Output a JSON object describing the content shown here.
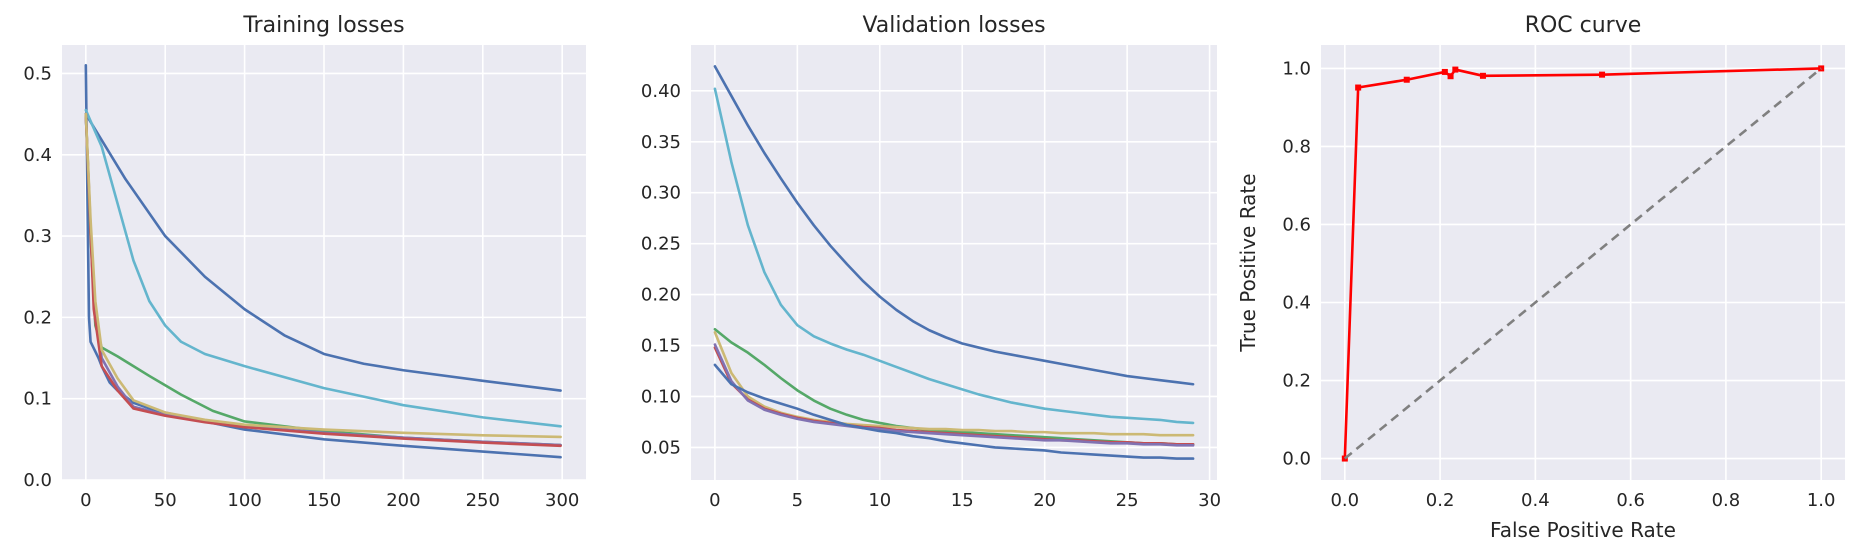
{
  "chart_data": [
    {
      "type": "line",
      "title": "Training losses",
      "xlabel": "",
      "ylabel": "",
      "xlim": [
        -15,
        315
      ],
      "ylim": [
        0,
        0.535
      ],
      "xticks": [
        0,
        50,
        100,
        150,
        200,
        250,
        300
      ],
      "yticks": [
        0.0,
        0.1,
        0.2,
        0.3,
        0.4,
        0.5
      ],
      "ytick_labels": [
        "0.0",
        "0.1",
        "0.2",
        "0.3",
        "0.4",
        "0.5"
      ],
      "grid": true,
      "series": [
        {
          "color": "#4c72b0",
          "points": [
            [
              0,
              0.51
            ],
            [
              1,
              0.35
            ],
            [
              2,
              0.2
            ],
            [
              3,
              0.17
            ],
            [
              5,
              0.162
            ],
            [
              8,
              0.15
            ],
            [
              10,
              0.14
            ],
            [
              15,
              0.12
            ],
            [
              20,
              0.11
            ],
            [
              30,
              0.095
            ],
            [
              40,
              0.088
            ],
            [
              50,
              0.083
            ],
            [
              75,
              0.072
            ],
            [
              100,
              0.062
            ],
            [
              150,
              0.05
            ],
            [
              200,
              0.042
            ],
            [
              250,
              0.035
            ],
            [
              299,
              0.028
            ]
          ]
        },
        {
          "color": "#4c72b0",
          "points": [
            [
              0,
              0.45
            ],
            [
              25,
              0.37
            ],
            [
              50,
              0.3
            ],
            [
              75,
              0.25
            ],
            [
              100,
              0.21
            ],
            [
              125,
              0.178
            ],
            [
              150,
              0.155
            ],
            [
              175,
              0.143
            ],
            [
              200,
              0.135
            ],
            [
              250,
              0.122
            ],
            [
              299,
              0.11
            ]
          ]
        },
        {
          "color": "#64b5cd",
          "points": [
            [
              0,
              0.455
            ],
            [
              10,
              0.41
            ],
            [
              20,
              0.34
            ],
            [
              30,
              0.27
            ],
            [
              40,
              0.22
            ],
            [
              50,
              0.19
            ],
            [
              60,
              0.17
            ],
            [
              75,
              0.155
            ],
            [
              100,
              0.14
            ],
            [
              150,
              0.113
            ],
            [
              200,
              0.092
            ],
            [
              250,
              0.077
            ],
            [
              299,
              0.066
            ]
          ]
        },
        {
          "color": "#55a868",
          "points": [
            [
              0,
              0.45
            ],
            [
              3,
              0.3
            ],
            [
              6,
              0.19
            ],
            [
              10,
              0.163
            ],
            [
              20,
              0.152
            ],
            [
              40,
              0.128
            ],
            [
              60,
              0.105
            ],
            [
              80,
              0.085
            ],
            [
              100,
              0.072
            ],
            [
              150,
              0.06
            ],
            [
              200,
              0.052
            ],
            [
              250,
              0.047
            ],
            [
              299,
              0.043
            ]
          ]
        },
        {
          "color": "#8172b2",
          "points": [
            [
              0,
              0.45
            ],
            [
              5,
              0.22
            ],
            [
              10,
              0.15
            ],
            [
              20,
              0.115
            ],
            [
              30,
              0.09
            ],
            [
              50,
              0.08
            ],
            [
              75,
              0.072
            ],
            [
              100,
              0.066
            ],
            [
              150,
              0.058
            ],
            [
              200,
              0.052
            ],
            [
              250,
              0.047
            ],
            [
              299,
              0.043
            ]
          ]
        },
        {
          "color": "#c44e52",
          "points": [
            [
              0,
              0.45
            ],
            [
              5,
              0.21
            ],
            [
              10,
              0.14
            ],
            [
              20,
              0.11
            ],
            [
              30,
              0.088
            ],
            [
              50,
              0.079
            ],
            [
              75,
              0.071
            ],
            [
              100,
              0.065
            ],
            [
              150,
              0.057
            ],
            [
              200,
              0.051
            ],
            [
              250,
              0.046
            ],
            [
              299,
              0.042
            ]
          ]
        },
        {
          "color": "#ccb974",
          "points": [
            [
              0,
              0.45
            ],
            [
              3,
              0.32
            ],
            [
              6,
              0.22
            ],
            [
              10,
              0.16
            ],
            [
              20,
              0.125
            ],
            [
              30,
              0.098
            ],
            [
              50,
              0.083
            ],
            [
              75,
              0.074
            ],
            [
              100,
              0.068
            ],
            [
              150,
              0.062
            ],
            [
              200,
              0.058
            ],
            [
              250,
              0.055
            ],
            [
              299,
              0.053
            ]
          ]
        }
      ]
    },
    {
      "type": "line",
      "title": "Validation losses",
      "xlabel": "",
      "ylabel": "",
      "xlim": [
        -1.45,
        30.45
      ],
      "ylim": [
        0.018,
        0.445
      ],
      "xticks": [
        0,
        5,
        10,
        15,
        20,
        25,
        30
      ],
      "yticks": [
        0.05,
        0.1,
        0.15,
        0.2,
        0.25,
        0.3,
        0.35,
        0.4
      ],
      "ytick_labels": [
        "0.05",
        "0.10",
        "0.15",
        "0.20",
        "0.25",
        "0.30",
        "0.35",
        "0.40"
      ],
      "grid": true,
      "series": [
        {
          "color": "#4c72b0",
          "x": [
            0,
            1,
            2,
            3,
            4,
            5,
            6,
            7,
            8,
            9,
            10,
            11,
            12,
            13,
            14,
            15,
            16,
            17,
            18,
            19,
            20,
            21,
            22,
            23,
            24,
            25,
            26,
            27,
            28,
            29
          ],
          "values": [
            0.424,
            0.395,
            0.366,
            0.339,
            0.314,
            0.29,
            0.268,
            0.248,
            0.23,
            0.213,
            0.198,
            0.185,
            0.174,
            0.165,
            0.158,
            0.152,
            0.148,
            0.144,
            0.141,
            0.138,
            0.135,
            0.132,
            0.129,
            0.126,
            0.123,
            0.12,
            0.118,
            0.116,
            0.114,
            0.112
          ]
        },
        {
          "color": "#64b5cd",
          "x": [
            0,
            1,
            2,
            3,
            4,
            5,
            6,
            7,
            8,
            9,
            10,
            11,
            12,
            13,
            14,
            15,
            16,
            17,
            18,
            19,
            20,
            21,
            22,
            23,
            24,
            25,
            26,
            27,
            28,
            29
          ],
          "values": [
            0.402,
            0.33,
            0.268,
            0.222,
            0.19,
            0.17,
            0.159,
            0.152,
            0.146,
            0.141,
            0.135,
            0.129,
            0.123,
            0.117,
            0.112,
            0.107,
            0.102,
            0.098,
            0.094,
            0.091,
            0.088,
            0.086,
            0.084,
            0.082,
            0.08,
            0.079,
            0.078,
            0.077,
            0.075,
            0.074
          ]
        },
        {
          "color": "#55a868",
          "x": [
            0,
            1,
            2,
            3,
            4,
            5,
            6,
            7,
            8,
            9,
            10,
            11,
            12,
            13,
            14,
            15,
            16,
            17,
            18,
            19,
            20,
            21,
            22,
            23,
            24,
            25,
            26,
            27,
            28,
            29
          ],
          "values": [
            0.166,
            0.153,
            0.143,
            0.131,
            0.118,
            0.106,
            0.096,
            0.088,
            0.082,
            0.077,
            0.074,
            0.071,
            0.069,
            0.067,
            0.066,
            0.065,
            0.064,
            0.063,
            0.062,
            0.061,
            0.06,
            0.059,
            0.058,
            0.057,
            0.056,
            0.055,
            0.054,
            0.054,
            0.053,
            0.053
          ]
        },
        {
          "color": "#ccb974",
          "x": [
            0,
            1,
            2,
            3,
            4,
            5,
            6,
            7,
            8,
            9,
            10,
            11,
            12,
            13,
            14,
            15,
            16,
            17,
            18,
            19,
            20,
            21,
            22,
            23,
            24,
            25,
            26,
            27,
            28,
            29
          ],
          "values": [
            0.163,
            0.123,
            0.1,
            0.09,
            0.084,
            0.08,
            0.077,
            0.075,
            0.073,
            0.072,
            0.071,
            0.07,
            0.069,
            0.068,
            0.068,
            0.067,
            0.067,
            0.066,
            0.066,
            0.065,
            0.065,
            0.064,
            0.064,
            0.064,
            0.063,
            0.063,
            0.063,
            0.062,
            0.062,
            0.062
          ]
        },
        {
          "color": "#c44e52",
          "x": [
            0,
            1,
            2,
            3,
            4,
            5,
            6,
            7,
            8,
            9,
            10,
            11,
            12,
            13,
            14,
            15,
            16,
            17,
            18,
            19,
            20,
            21,
            22,
            23,
            24,
            25,
            26,
            27,
            28,
            29
          ],
          "values": [
            0.148,
            0.113,
            0.097,
            0.088,
            0.083,
            0.079,
            0.076,
            0.074,
            0.072,
            0.07,
            0.069,
            0.067,
            0.066,
            0.065,
            0.064,
            0.063,
            0.062,
            0.061,
            0.06,
            0.059,
            0.058,
            0.057,
            0.057,
            0.056,
            0.055,
            0.055,
            0.054,
            0.054,
            0.053,
            0.053
          ]
        },
        {
          "color": "#8172b2",
          "x": [
            0,
            1,
            2,
            3,
            4,
            5,
            6,
            7,
            8,
            9,
            10,
            11,
            12,
            13,
            14,
            15,
            16,
            17,
            18,
            19,
            20,
            21,
            22,
            23,
            24,
            25,
            26,
            27,
            28,
            29
          ],
          "values": [
            0.151,
            0.115,
            0.096,
            0.087,
            0.082,
            0.078,
            0.075,
            0.073,
            0.071,
            0.069,
            0.068,
            0.066,
            0.065,
            0.064,
            0.063,
            0.062,
            0.061,
            0.06,
            0.059,
            0.058,
            0.057,
            0.057,
            0.056,
            0.055,
            0.054,
            0.054,
            0.053,
            0.053,
            0.052,
            0.052
          ]
        },
        {
          "color": "#4c72b0",
          "x": [
            0,
            1,
            2,
            3,
            4,
            5,
            6,
            7,
            8,
            9,
            10,
            11,
            12,
            13,
            14,
            15,
            16,
            17,
            18,
            19,
            20,
            21,
            22,
            23,
            24,
            25,
            26,
            27,
            28,
            29
          ],
          "values": [
            0.131,
            0.112,
            0.104,
            0.098,
            0.093,
            0.088,
            0.082,
            0.077,
            0.072,
            0.069,
            0.066,
            0.064,
            0.061,
            0.059,
            0.056,
            0.054,
            0.052,
            0.05,
            0.049,
            0.048,
            0.047,
            0.045,
            0.044,
            0.043,
            0.042,
            0.041,
            0.04,
            0.04,
            0.039,
            0.039
          ]
        }
      ]
    },
    {
      "type": "line",
      "title": "ROC curve",
      "xlabel": "False Positive Rate",
      "ylabel": "True Positive Rate",
      "xlim": [
        -0.05,
        1.05
      ],
      "ylim": [
        -0.055,
        1.06
      ],
      "xticks": [
        0.0,
        0.2,
        0.4,
        0.6,
        0.8,
        1.0
      ],
      "xtick_labels": [
        "0.0",
        "0.2",
        "0.4",
        "0.6",
        "0.8",
        "1.0"
      ],
      "yticks": [
        0.0,
        0.2,
        0.4,
        0.6,
        0.8,
        1.0
      ],
      "ytick_labels": [
        "0.0",
        "0.2",
        "0.4",
        "0.6",
        "0.8",
        "1.0"
      ],
      "grid": true,
      "series": [
        {
          "color": "#ff0000",
          "marker": "square",
          "x": [
            0.0,
            0.028,
            0.13,
            0.21,
            0.222,
            0.232,
            0.29,
            0.54,
            1.0
          ],
          "values": [
            0.0,
            0.951,
            0.971,
            0.991,
            0.98,
            0.997,
            0.981,
            0.984,
            1.0
          ]
        },
        {
          "color": "#808080",
          "dashed": true,
          "x": [
            0.0,
            1.0
          ],
          "values": [
            0.0,
            1.0
          ]
        }
      ]
    }
  ]
}
